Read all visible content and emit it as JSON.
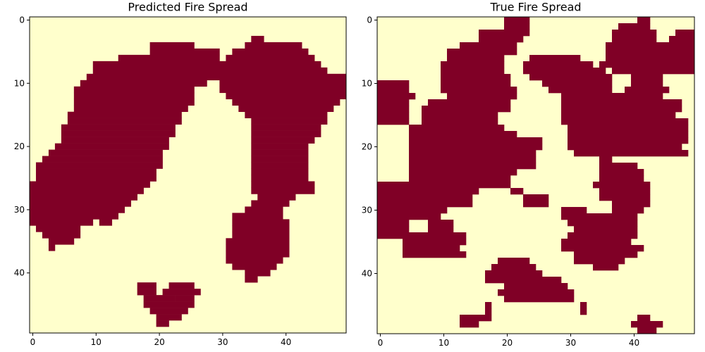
{
  "colors": {
    "burned": "#800026",
    "unburned": "#ffffcc",
    "axis": "#000000"
  },
  "chart_data": [
    {
      "type": "heatmap",
      "title": "Predicted Fire Spread",
      "grid_size": [
        50,
        50
      ],
      "xlim": [
        -0.5,
        49.5
      ],
      "ylim": [
        49.5,
        -0.5
      ],
      "x_ticks": [
        0,
        10,
        20,
        30,
        40
      ],
      "y_ticks": [
        0,
        10,
        20,
        30,
        40
      ],
      "burned_rows": [
        [],
        [],
        [],
        [
          [
            35,
            36
          ]
        ],
        [
          [
            19,
            25
          ],
          [
            34,
            42
          ]
        ],
        [
          [
            19,
            29
          ],
          [
            32,
            43
          ]
        ],
        [
          [
            14,
            29
          ],
          [
            31,
            44
          ]
        ],
        [
          [
            10,
            30
          ],
          [
            31,
            45
          ]
        ],
        [
          [
            10,
            29
          ],
          [
            30,
            46
          ]
        ],
        [
          [
            9,
            28
          ],
          [
            29,
            49
          ]
        ],
        [
          [
            8,
            27
          ],
          [
            30,
            49
          ]
        ],
        [
          [
            7,
            25
          ],
          [
            30,
            49
          ]
        ],
        [
          [
            7,
            25
          ],
          [
            31,
            49
          ]
        ],
        [
          [
            7,
            25
          ],
          [
            32,
            48
          ]
        ],
        [
          [
            7,
            24
          ],
          [
            33,
            47
          ]
        ],
        [
          [
            6,
            23
          ],
          [
            34,
            46
          ]
        ],
        [
          [
            6,
            23
          ],
          [
            35,
            46
          ]
        ],
        [
          [
            5,
            22
          ],
          [
            35,
            45
          ]
        ],
        [
          [
            5,
            22
          ],
          [
            35,
            45
          ]
        ],
        [
          [
            5,
            21
          ],
          [
            35,
            44
          ]
        ],
        [
          [
            4,
            21
          ],
          [
            35,
            43
          ]
        ],
        [
          [
            3,
            20
          ],
          [
            35,
            43
          ]
        ],
        [
          [
            2,
            20
          ],
          [
            35,
            43
          ]
        ],
        [
          [
            1,
            20
          ],
          [
            35,
            43
          ]
        ],
        [
          [
            1,
            19
          ],
          [
            35,
            43
          ]
        ],
        [
          [
            1,
            19
          ],
          [
            35,
            43
          ]
        ],
        [
          [
            0,
            18
          ],
          [
            35,
            44
          ]
        ],
        [
          [
            0,
            17
          ],
          [
            35,
            44
          ]
        ],
        [
          [
            0,
            16
          ],
          [
            36,
            41
          ]
        ],
        [
          [
            0,
            15
          ],
          [
            35,
            40
          ]
        ],
        [
          [
            0,
            14
          ],
          [
            34,
            39
          ]
        ],
        [
          [
            0,
            13
          ],
          [
            32,
            39
          ]
        ],
        [
          [
            0,
            9
          ],
          [
            11,
            12
          ],
          [
            32,
            40
          ]
        ],
        [
          [
            1,
            7
          ],
          [
            32,
            40
          ]
        ],
        [
          [
            2,
            7
          ],
          [
            32,
            40
          ]
        ],
        [
          [
            3,
            6
          ],
          [
            31,
            40
          ]
        ],
        [
          [
            3,
            3
          ],
          [
            31,
            40
          ]
        ],
        [
          [
            31,
            40
          ]
        ],
        [
          [
            31,
            39
          ]
        ],
        [
          [
            32,
            38
          ]
        ],
        [
          [
            34,
            37
          ]
        ],
        [
          [
            34,
            35
          ]
        ],
        [
          [
            17,
            19
          ],
          [
            22,
            25
          ]
        ],
        [
          [
            17,
            19
          ],
          [
            21,
            26
          ]
        ],
        [
          [
            18,
            22
          ],
          [
            23,
            25
          ]
        ],
        [
          [
            18,
            25
          ]
        ],
        [
          [
            19,
            24
          ]
        ],
        [
          [
            20,
            23
          ]
        ],
        [
          [
            20,
            21
          ]
        ],
        []
      ]
    },
    {
      "type": "heatmap",
      "title": "True Fire Spread",
      "grid_size": [
        50,
        50
      ],
      "xlim": [
        -0.5,
        49.5
      ],
      "ylim": [
        49.5,
        -0.5
      ],
      "x_ticks": [
        0,
        10,
        20,
        30,
        40
      ],
      "y_ticks": [
        0,
        10,
        20,
        30,
        40
      ],
      "burned_rows": [
        [
          [
            20,
            23
          ],
          [
            41,
            42
          ]
        ],
        [
          [
            20,
            23
          ],
          [
            38,
            42
          ]
        ],
        [
          [
            16,
            23
          ],
          [
            37,
            43
          ],
          [
            47,
            49
          ]
        ],
        [
          [
            16,
            22
          ],
          [
            37,
            43
          ],
          [
            46,
            49
          ]
        ],
        [
          [
            13,
            21
          ],
          [
            36,
            49
          ]
        ],
        [
          [
            11,
            21
          ],
          [
            36,
            49
          ]
        ],
        [
          [
            11,
            19
          ],
          [
            24,
            31
          ],
          [
            36,
            49
          ]
        ],
        [
          [
            10,
            19
          ],
          [
            23,
            33
          ],
          [
            35,
            49
          ]
        ],
        [
          [
            10,
            19
          ],
          [
            23,
            35
          ],
          [
            37,
            49
          ]
        ],
        [
          [
            10,
            20
          ],
          [
            24,
            36
          ],
          [
            40,
            44
          ]
        ],
        [
          [
            0,
            4
          ],
          [
            10,
            20
          ],
          [
            26,
            36
          ],
          [
            40,
            44
          ]
        ],
        [
          [
            0,
            4
          ],
          [
            10,
            21
          ],
          [
            27,
            36
          ],
          [
            39,
            45
          ]
        ],
        [
          [
            0,
            5
          ],
          [
            11,
            21
          ],
          [
            29,
            44
          ]
        ],
        [
          [
            0,
            4
          ],
          [
            8,
            20
          ],
          [
            29,
            47
          ]
        ],
        [
          [
            0,
            4
          ],
          [
            7,
            20
          ],
          [
            29,
            47
          ]
        ],
        [
          [
            0,
            4
          ],
          [
            7,
            18
          ],
          [
            29,
            46
          ]
        ],
        [
          [
            0,
            4
          ],
          [
            7,
            18
          ],
          [
            29,
            48
          ]
        ],
        [
          [
            5,
            19
          ],
          [
            30,
            48
          ]
        ],
        [
          [
            5,
            21
          ],
          [
            30,
            48
          ]
        ],
        [
          [
            5,
            25
          ],
          [
            30,
            48
          ]
        ],
        [
          [
            5,
            25
          ],
          [
            30,
            47
          ]
        ],
        [
          [
            5,
            24
          ],
          [
            31,
            48
          ]
        ],
        [
          [
            5,
            24
          ],
          [
            35,
            36
          ]
        ],
        [
          [
            5,
            24
          ],
          [
            35,
            40
          ]
        ],
        [
          [
            5,
            21
          ],
          [
            35,
            41
          ]
        ],
        [
          [
            5,
            20
          ],
          [
            35,
            41
          ]
        ],
        [
          [
            0,
            20
          ],
          [
            34,
            42
          ]
        ],
        [
          [
            0,
            15
          ],
          [
            21,
            22
          ],
          [
            35,
            42
          ]
        ],
        [
          [
            0,
            14
          ],
          [
            23,
            26
          ],
          [
            35,
            42
          ]
        ],
        [
          [
            0,
            14
          ],
          [
            23,
            26
          ],
          [
            37,
            42
          ]
        ],
        [
          [
            0,
            10
          ],
          [
            29,
            32
          ],
          [
            37,
            41
          ]
        ],
        [
          [
            0,
            9
          ],
          [
            29,
            40
          ]
        ],
        [
          [
            0,
            4
          ],
          [
            8,
            11
          ],
          [
            30,
            40
          ]
        ],
        [
          [
            0,
            4
          ],
          [
            8,
            11
          ],
          [
            31,
            40
          ]
        ],
        [
          [
            0,
            4
          ],
          [
            5,
            13
          ],
          [
            30,
            40
          ]
        ],
        [
          [
            4,
            13
          ],
          [
            29,
            39
          ]
        ],
        [
          [
            4,
            12
          ],
          [
            29,
            41
          ]
        ],
        [
          [
            4,
            13
          ],
          [
            31,
            40
          ]
        ],
        [
          [
            19,
            23
          ],
          [
            31,
            38
          ]
        ],
        [
          [
            18,
            24
          ],
          [
            34,
            37
          ]
        ],
        [
          [
            17,
            25
          ]
        ],
        [
          [
            17,
            28
          ]
        ],
        [
          [
            20,
            29
          ]
        ],
        [
          [
            19,
            30
          ]
        ],
        [
          [
            20,
            30
          ]
        ],
        [
          [
            17,
            17
          ],
          [
            32,
            32
          ]
        ],
        [
          [
            17,
            17
          ],
          [
            32,
            32
          ]
        ],
        [
          [
            13,
            17
          ],
          [
            41,
            42
          ]
        ],
        [
          [
            13,
            15
          ],
          [
            40,
            44
          ]
        ],
        [
          [
            41,
            43
          ]
        ]
      ]
    }
  ]
}
